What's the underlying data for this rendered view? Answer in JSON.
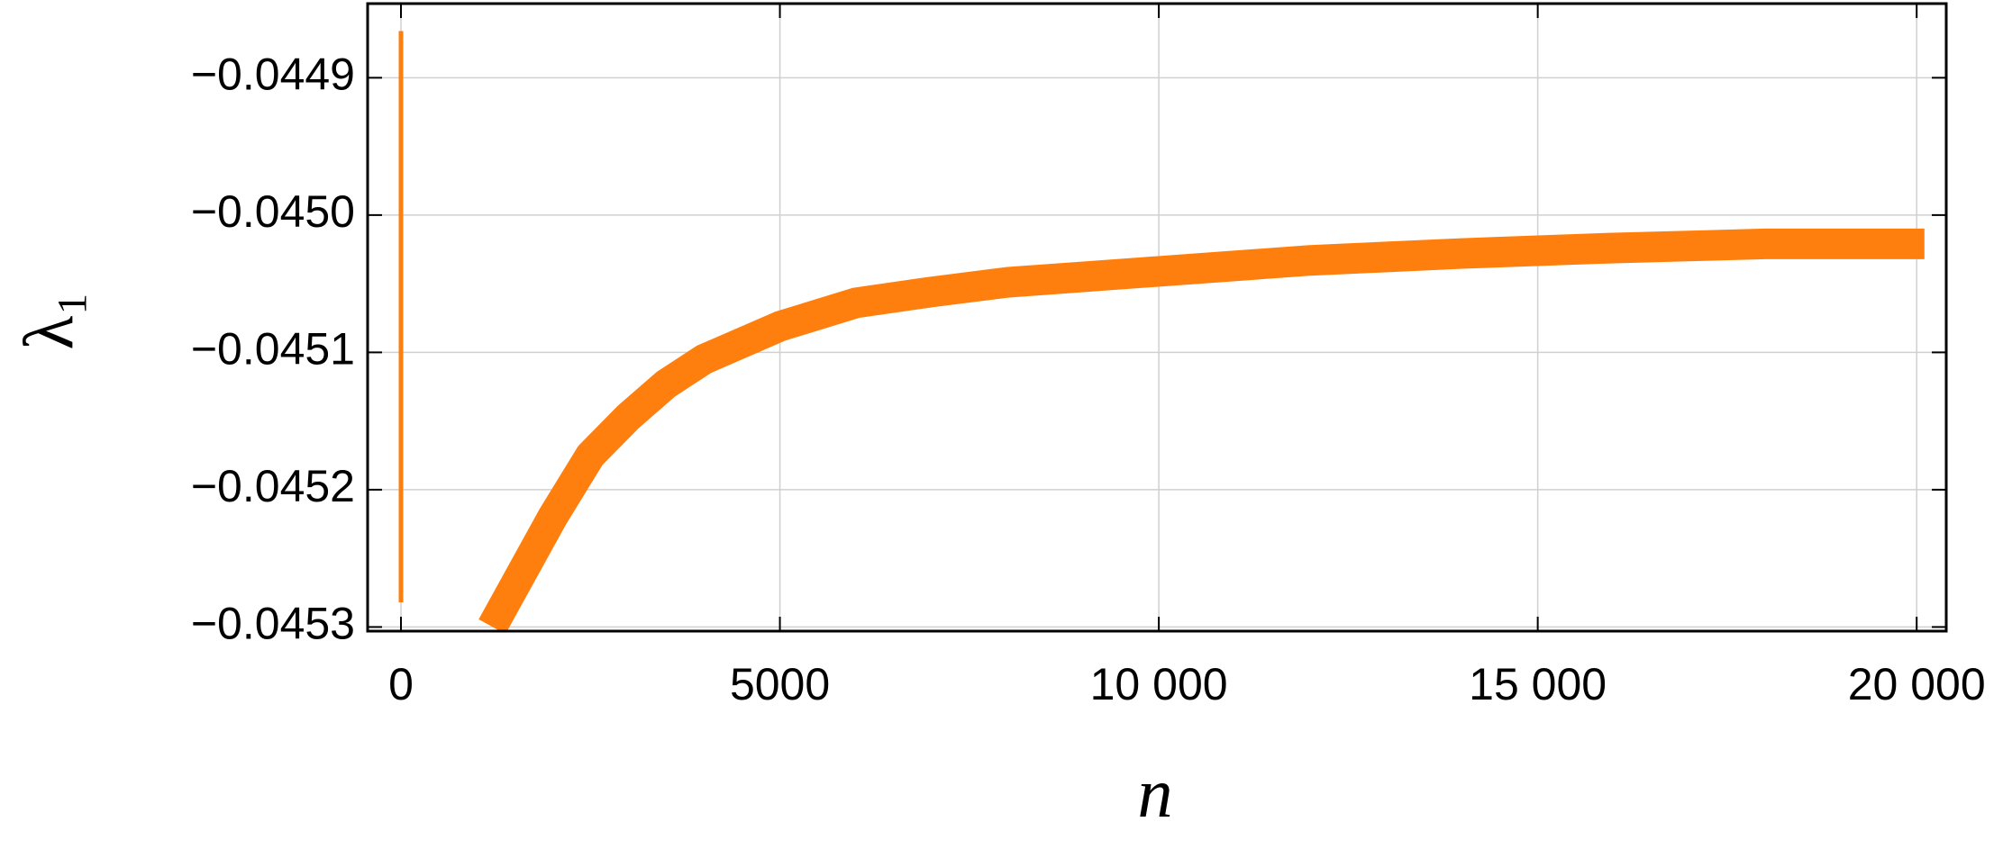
{
  "chart_data": {
    "type": "line",
    "xlabel": "n",
    "ylabel": "λ₁",
    "series": [
      {
        "color": "#ff7f0e",
        "x": [
          0,
          0
        ],
        "values": [
          -0.044866,
          -0.045282
        ]
      },
      {
        "color": "#ff7f0e",
        "x": [
          1300,
          1500,
          2000,
          2500,
          3000,
          3500,
          4000,
          5000,
          6000,
          7000,
          8000,
          10000,
          12000,
          14000,
          16000,
          18000,
          19900
        ],
        "values": [
          -0.04529,
          -0.04527,
          -0.04522,
          -0.045175,
          -0.045147,
          -0.045123,
          -0.045105,
          -0.045081,
          -0.045064,
          -0.045056,
          -0.045049,
          -0.045041,
          -0.045033,
          -0.045028,
          -0.045024,
          -0.045021,
          -0.045021
        ]
      }
    ],
    "xlim": [
      -440,
      20390
    ],
    "ylim": [
      -0.045303,
      -0.044846
    ],
    "xticks": [
      0,
      5000,
      {
        "value": 10000,
        "label": "10 000"
      },
      {
        "value": 15000,
        "label": "15 000"
      },
      {
        "value": 20000,
        "label": "20 000"
      }
    ],
    "yticks": [
      {
        "value": -0.0453,
        "label": "−0.0453"
      },
      {
        "value": -0.0452,
        "label": "−0.0452"
      },
      {
        "value": -0.0451,
        "label": "−0.0451"
      },
      {
        "value": -0.045,
        "label": "−0.0450"
      },
      {
        "value": -0.0449,
        "label": "−0.0449"
      }
    ],
    "grid": true
  }
}
